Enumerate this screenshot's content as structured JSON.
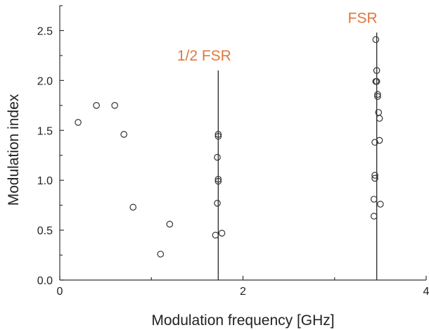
{
  "chart_data": {
    "type": "scatter",
    "title": "",
    "xlabel": "Modulation frequency [GHz]",
    "ylabel": "Modulation index",
    "xlim": [
      0,
      4
    ],
    "ylim": [
      0,
      2.75
    ],
    "x_ticks": [
      0,
      2,
      4
    ],
    "x_tick_labels": [
      "0",
      "2",
      "4"
    ],
    "x_minor_ticks": [
      1,
      3
    ],
    "y_ticks": [
      0,
      0.5,
      1.0,
      1.5,
      2.0,
      2.5
    ],
    "y_tick_labels": [
      "0.0",
      "0.5",
      "1.0",
      "1.5",
      "2.0",
      "2.5"
    ],
    "grid": false,
    "marker": "open-circle",
    "series": [
      {
        "x": [
          0.2,
          0.4,
          0.6,
          0.7,
          0.8,
          1.1,
          1.2,
          1.7,
          1.72,
          1.72,
          1.73,
          1.73,
          1.73,
          1.73,
          1.77,
          3.43,
          3.43,
          3.44,
          3.44,
          3.44,
          3.45,
          3.45,
          3.46,
          3.46,
          3.47,
          3.47,
          3.48,
          3.49,
          3.49,
          3.5
        ],
        "y": [
          1.58,
          1.75,
          1.75,
          1.46,
          0.73,
          0.26,
          0.56,
          0.45,
          1.23,
          0.77,
          1.44,
          1.46,
          1.01,
          0.99,
          0.47,
          0.64,
          0.81,
          1.38,
          1.02,
          1.05,
          1.99,
          2.41,
          1.99,
          2.1,
          1.84,
          1.86,
          1.68,
          1.62,
          1.4,
          0.76
        ]
      }
    ],
    "vertical_lines": [
      {
        "x": 1.73,
        "y_top": 2.1,
        "label": "1/2 FSR"
      },
      {
        "x": 3.46,
        "y_top": 2.48,
        "label": "FSR"
      }
    ],
    "annotation_color": "#e0773c"
  }
}
